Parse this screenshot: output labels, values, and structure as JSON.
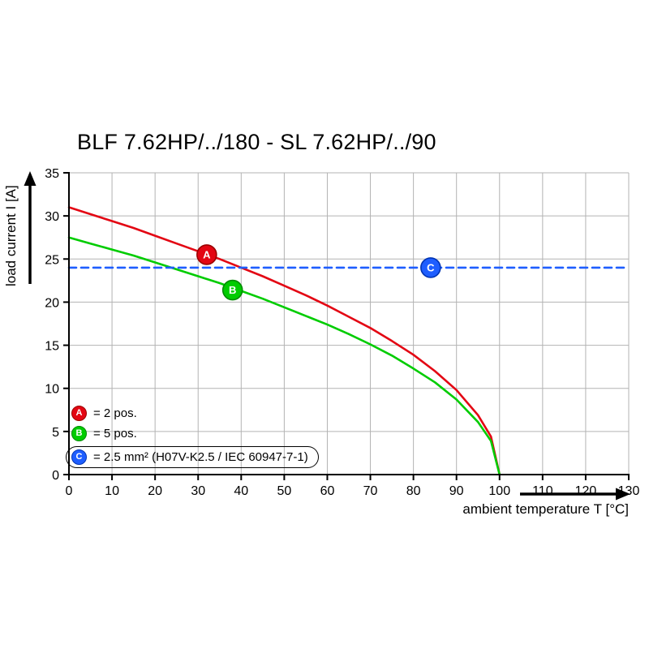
{
  "chart_data": {
    "type": "line",
    "title": "BLF 7.62HP/../180 - SL 7.62HP/../90",
    "xlabel": "ambient temperature T [°C]",
    "ylabel": "load current I [A]",
    "xlim": [
      0,
      130
    ],
    "ylim": [
      0,
      35
    ],
    "xticks": [
      0,
      10,
      20,
      30,
      40,
      50,
      60,
      70,
      80,
      90,
      100,
      110,
      120,
      130
    ],
    "yticks": [
      0,
      5,
      10,
      15,
      20,
      25,
      30,
      35
    ],
    "grid": true,
    "grid_color": "#b3b3b3",
    "legend_position": "lower-left",
    "series": [
      {
        "name": "A = 2 pos.",
        "color": "#e30613",
        "style": "solid",
        "x": [
          0,
          5,
          10,
          15,
          20,
          25,
          30,
          35,
          40,
          45,
          50,
          55,
          60,
          65,
          70,
          75,
          80,
          85,
          90,
          95,
          98,
          100
        ],
        "y": [
          31.0,
          30.2,
          29.4,
          28.6,
          27.7,
          26.8,
          25.9,
          25.0,
          24.0,
          23.0,
          21.9,
          20.8,
          19.6,
          18.3,
          17.0,
          15.5,
          13.9,
          12.0,
          9.8,
          6.9,
          4.4,
          0
        ]
      },
      {
        "name": "B = 5 pos.",
        "color": "#00cc00",
        "style": "solid",
        "x": [
          0,
          5,
          10,
          15,
          20,
          25,
          30,
          35,
          40,
          45,
          50,
          55,
          60,
          65,
          70,
          75,
          80,
          85,
          90,
          95,
          98,
          100
        ],
        "y": [
          27.5,
          26.8,
          26.1,
          25.4,
          24.6,
          23.8,
          23.0,
          22.2,
          21.3,
          20.4,
          19.4,
          18.4,
          17.4,
          16.3,
          15.1,
          13.8,
          12.3,
          10.7,
          8.7,
          6.1,
          3.9,
          0
        ]
      },
      {
        "name": "C = 2.5 mm² (H07V-K2.5 / IEC 60947-7-1)",
        "color": "#1e5eff",
        "style": "dashed",
        "x": [
          0,
          130
        ],
        "y": [
          24,
          24
        ]
      }
    ],
    "markers": [
      {
        "label": "A",
        "x": 32,
        "y": 25.5,
        "color": "#e30613",
        "edge": "#9b0000"
      },
      {
        "label": "B",
        "x": 38,
        "y": 21.4,
        "color": "#00cc00",
        "edge": "#008a00"
      },
      {
        "label": "C",
        "x": 84,
        "y": 24.0,
        "color": "#1e5eff",
        "edge": "#0034b4"
      }
    ],
    "legend": [
      {
        "letter": "A",
        "label": "= 2 pos.",
        "color": "#e30613",
        "edge": "#9b0000",
        "boxed": false
      },
      {
        "letter": "B",
        "label": "= 5 pos.",
        "color": "#00cc00",
        "edge": "#008a00",
        "boxed": false
      },
      {
        "letter": "C",
        "label": "= 2.5 mm² (H07V-K2.5 / IEC 60947-7-1)",
        "color": "#1e5eff",
        "edge": "#0034b4",
        "boxed": true
      }
    ]
  }
}
